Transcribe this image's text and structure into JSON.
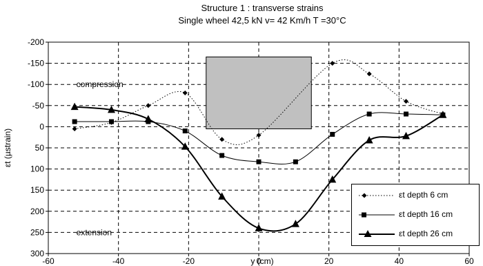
{
  "chart_data": {
    "type": "line",
    "title": "Structure 1 : transverse strains",
    "subtitle": "Single wheel 42,5 kN  v= 42 Km/h  T =30°C",
    "xlabel": "y (cm)",
    "ylabel": "εt (µstrain)",
    "xlim": [
      -60,
      60
    ],
    "ylim": [
      300,
      -200
    ],
    "y_reversed": true,
    "xticks": [
      "-60",
      "-40",
      "-20",
      "0",
      "20",
      "40",
      "60"
    ],
    "yticks": [
      "-200",
      "-150",
      "-100",
      "-50",
      "0",
      "50",
      "100",
      "150",
      "200",
      "250",
      "300"
    ],
    "grid": true,
    "legend_position": "bottom-right",
    "annotations": [
      {
        "text": "compression",
        "x": -52,
        "y": -100
      },
      {
        "text": "extension",
        "x": -52,
        "y": 250
      }
    ],
    "load_box": {
      "x0": -15,
      "x1": 15,
      "y0": -165,
      "y1": 5,
      "color": "#c0c0c0"
    },
    "series": [
      {
        "name": "εt depth 6 cm",
        "marker": "diamond",
        "line": "dotted",
        "points": [
          [
            -52.5,
            5
          ],
          [
            -42,
            -10
          ],
          [
            -31.5,
            -50
          ],
          [
            -21,
            -80
          ],
          [
            -10.5,
            30
          ],
          [
            0,
            20
          ],
          [
            21,
            -150
          ],
          [
            31.5,
            -125
          ],
          [
            42,
            -60
          ],
          [
            52.5,
            -30
          ]
        ]
      },
      {
        "name": "εt depth 16 cm",
        "marker": "square",
        "line": "thin",
        "points": [
          [
            -52.5,
            -12
          ],
          [
            -42,
            -12
          ],
          [
            -31.5,
            -12
          ],
          [
            -21,
            10
          ],
          [
            -10.5,
            68
          ],
          [
            0,
            83
          ],
          [
            10.5,
            83
          ],
          [
            21,
            18
          ],
          [
            31.5,
            -30
          ],
          [
            42,
            -30
          ],
          [
            52.5,
            -28
          ]
        ]
      },
      {
        "name": "εt depth 26 cm",
        "marker": "triangle",
        "line": "thick",
        "points": [
          [
            -52.5,
            -47
          ],
          [
            -42,
            -40
          ],
          [
            -31.5,
            -18
          ],
          [
            -21,
            47
          ],
          [
            -10.5,
            165
          ],
          [
            0,
            240
          ],
          [
            10.5,
            230
          ],
          [
            21,
            125
          ],
          [
            31.5,
            32
          ],
          [
            42,
            22
          ],
          [
            52.5,
            -28
          ]
        ]
      }
    ]
  }
}
